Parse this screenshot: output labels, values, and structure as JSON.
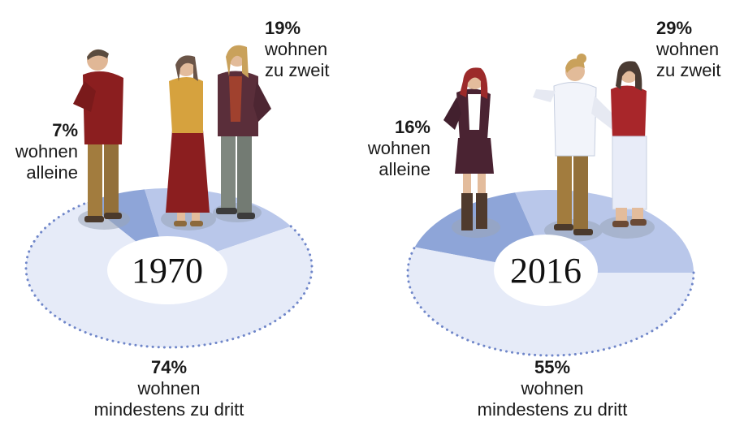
{
  "chart_data": [
    {
      "type": "pie",
      "year": "1970",
      "slices": [
        {
          "key": "alone",
          "value": 7,
          "pct_label": "7%",
          "lines": [
            "wohnen",
            "alleine"
          ]
        },
        {
          "key": "two",
          "value": 19,
          "pct_label": "19%",
          "lines": [
            "wohnen",
            "zu zweit"
          ]
        },
        {
          "key": "three",
          "value": 74,
          "pct_label": "74%",
          "lines": [
            "wohnen",
            "mindestens zu dritt"
          ]
        }
      ]
    },
    {
      "type": "pie",
      "year": "2016",
      "slices": [
        {
          "key": "alone",
          "value": 16,
          "pct_label": "16%",
          "lines": [
            "wohnen",
            "alleine"
          ]
        },
        {
          "key": "two",
          "value": 29,
          "pct_label": "29%",
          "lines": [
            "wohnen",
            "zu zweit"
          ]
        },
        {
          "key": "three",
          "value": 55,
          "pct_label": "55%",
          "lines": [
            "wohnen",
            "mindestens zu dritt"
          ]
        }
      ]
    }
  ],
  "colors": {
    "alone": "#8ea5d8",
    "two": "#b9c7ea",
    "three": "#e6ebf8",
    "dots": "#6f86c9",
    "shadow": "#9aa5b8",
    "label_disc": "#ffffff"
  }
}
